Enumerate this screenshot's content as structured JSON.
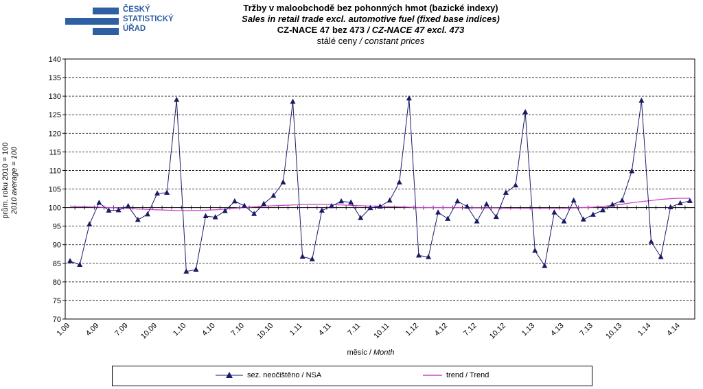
{
  "logo": {
    "lines": [
      "ČESKÝ",
      "STATISTICKÝ",
      "ÚŘAD"
    ]
  },
  "title": {
    "line1": "Tržby v maloobchodě  bez pohonných  hmot (bazické indexy)",
    "line2": "Sales  in retail  trade  excl.  automotive  fuel  (fixed  base  indices)",
    "line3_a": "CZ-NACE  47 bez 473 ",
    "line3_b": "/ CZ-NACE 47 excl.  473",
    "line4_a": "stálé  ceny ",
    "line4_b": "/ constant  prices"
  },
  "axis": {
    "ylabel_cz": "prům. roku 2010 = 100",
    "ylabel_en": "2010 average = 100",
    "xlabel_cz": "měsíc / ",
    "xlabel_en": "Month"
  },
  "legend": {
    "nsa": "sez. neočištěno / NSA",
    "trend": "trend / Trend"
  },
  "colors": {
    "nsa": "#1a1a66",
    "trend": "#cc44cc",
    "logo": "#2f5fa3"
  },
  "chart_data": {
    "type": "line",
    "ylim": [
      70,
      140
    ],
    "yticks": [
      70,
      75,
      80,
      85,
      90,
      95,
      100,
      105,
      110,
      115,
      120,
      125,
      130,
      135,
      140
    ],
    "grid": true,
    "legend_position": "bottom",
    "x_tick_labels": [
      "1.09",
      "4.09",
      "7.09",
      "10.09",
      "1.10",
      "4.10",
      "7.10",
      "10.10",
      "1.11",
      "4.11",
      "7.11",
      "10.11",
      "1.12",
      "4.12",
      "7.12",
      "10.12",
      "1.13",
      "4.13",
      "7.13",
      "10.13",
      "1.14",
      "4.14"
    ],
    "x": [
      "1.09",
      "2.09",
      "3.09",
      "4.09",
      "5.09",
      "6.09",
      "7.09",
      "8.09",
      "9.09",
      "10.09",
      "11.09",
      "12.09",
      "1.10",
      "2.10",
      "3.10",
      "4.10",
      "5.10",
      "6.10",
      "7.10",
      "8.10",
      "9.10",
      "10.10",
      "11.10",
      "12.10",
      "1.11",
      "2.11",
      "3.11",
      "4.11",
      "5.11",
      "6.11",
      "7.11",
      "8.11",
      "9.11",
      "10.11",
      "11.11",
      "12.11",
      "1.12",
      "2.12",
      "3.12",
      "4.12",
      "5.12",
      "6.12",
      "7.12",
      "8.12",
      "9.12",
      "10.12",
      "11.12",
      "12.12",
      "1.13",
      "2.13",
      "3.13",
      "4.13",
      "5.13",
      "6.13",
      "7.13",
      "8.13",
      "9.13",
      "10.13",
      "11.13",
      "12.13",
      "1.14",
      "2.14",
      "3.14",
      "4.14",
      "5.14"
    ],
    "series": [
      {
        "name": "sez. neočištěno / NSA",
        "values": [
          85.6,
          84.6,
          95.5,
          101.3,
          99.2,
          99.3,
          100.4,
          96.7,
          98.2,
          103.8,
          104.0,
          129.0,
          82.8,
          83.3,
          97.7,
          97.4,
          99.1,
          101.7,
          100.5,
          98.3,
          101.0,
          103.2,
          106.8,
          128.5,
          86.8,
          86.1,
          99.2,
          100.4,
          101.7,
          101.4,
          97.2,
          99.9,
          100.3,
          101.9,
          106.8,
          129.4,
          87.1,
          86.7,
          98.7,
          97.0,
          101.7,
          100.3,
          96.3,
          100.9,
          97.5,
          104.0,
          106.0,
          125.7,
          88.4,
          84.3,
          98.7,
          96.3,
          101.9,
          96.8,
          98.1,
          99.3,
          100.8,
          101.9,
          109.8,
          128.8,
          90.8,
          86.7,
          100.1,
          101.2,
          101.8
        ]
      },
      {
        "name": "trend / Trend",
        "values": [
          100.4,
          100.3,
          100.2,
          100.1,
          100.0,
          99.9,
          99.8,
          99.6,
          99.5,
          99.4,
          99.3,
          99.2,
          99.2,
          99.2,
          99.3,
          99.4,
          99.6,
          99.8,
          100.0,
          100.2,
          100.4,
          100.5,
          100.6,
          100.7,
          100.8,
          100.9,
          100.9,
          100.8,
          100.7,
          100.6,
          100.5,
          100.4,
          100.4,
          100.3,
          100.2,
          100.1,
          100.0,
          100.0,
          100.0,
          100.0,
          100.0,
          99.9,
          99.9,
          99.9,
          99.9,
          99.8,
          99.8,
          99.8,
          99.8,
          99.8,
          99.8,
          99.8,
          99.9,
          100.0,
          100.1,
          100.3,
          100.6,
          100.9,
          101.3,
          101.6,
          101.9,
          102.2,
          102.4,
          102.5,
          102.5
        ]
      }
    ]
  }
}
